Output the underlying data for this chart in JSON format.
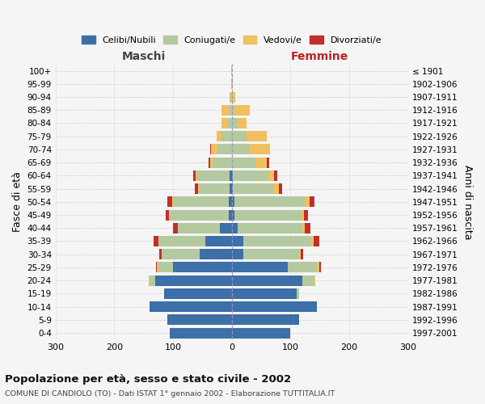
{
  "age_groups": [
    "0-4",
    "5-9",
    "10-14",
    "15-19",
    "20-24",
    "25-29",
    "30-34",
    "35-39",
    "40-44",
    "45-49",
    "50-54",
    "55-59",
    "60-64",
    "65-69",
    "70-74",
    "75-79",
    "80-84",
    "85-89",
    "90-94",
    "95-99",
    "100+"
  ],
  "birth_years": [
    "1997-2001",
    "1992-1996",
    "1987-1991",
    "1982-1986",
    "1977-1981",
    "1972-1976",
    "1967-1971",
    "1962-1966",
    "1957-1961",
    "1952-1956",
    "1947-1951",
    "1942-1946",
    "1937-1941",
    "1932-1936",
    "1927-1931",
    "1922-1926",
    "1917-1921",
    "1912-1916",
    "1907-1911",
    "1902-1906",
    "≤ 1901"
  ],
  "males_celibi": [
    105,
    110,
    140,
    115,
    130,
    100,
    55,
    45,
    20,
    5,
    5,
    4,
    4,
    0,
    0,
    0,
    0,
    0,
    0,
    0,
    0
  ],
  "males_coniugati": [
    0,
    0,
    0,
    0,
    10,
    25,
    65,
    80,
    72,
    100,
    95,
    52,
    55,
    32,
    25,
    18,
    8,
    5,
    2,
    1,
    1
  ],
  "males_vedovi": [
    0,
    0,
    0,
    0,
    1,
    2,
    0,
    0,
    0,
    2,
    2,
    2,
    2,
    5,
    10,
    8,
    10,
    12,
    2,
    0,
    0
  ],
  "males_divorziati": [
    0,
    0,
    0,
    0,
    1,
    2,
    4,
    8,
    8,
    6,
    8,
    5,
    4,
    2,
    2,
    0,
    0,
    0,
    0,
    0,
    0
  ],
  "females_nubili": [
    100,
    115,
    145,
    110,
    120,
    95,
    20,
    20,
    10,
    4,
    4,
    2,
    2,
    0,
    0,
    0,
    0,
    0,
    0,
    0,
    0
  ],
  "females_coniugate": [
    0,
    0,
    0,
    5,
    20,
    50,
    95,
    115,
    110,
    115,
    120,
    70,
    60,
    40,
    30,
    25,
    10,
    5,
    1,
    0,
    0
  ],
  "females_vedove": [
    0,
    0,
    0,
    0,
    2,
    4,
    2,
    4,
    4,
    4,
    8,
    8,
    10,
    20,
    35,
    35,
    15,
    25,
    5,
    2,
    0
  ],
  "females_divorziate": [
    0,
    0,
    0,
    0,
    0,
    2,
    5,
    10,
    10,
    6,
    8,
    5,
    5,
    4,
    0,
    0,
    0,
    0,
    0,
    0,
    0
  ],
  "color_celibi": "#3d6fa8",
  "color_coniugati": "#b5c9a0",
  "color_vedovi": "#f0c060",
  "color_divorziati": "#c0302a",
  "title": "Popolazione per età, sesso e stato civile - 2002",
  "subtitle": "COMUNE DI CANDIOLO (TO) - Dati ISTAT 1° gennaio 2002 - Elaborazione TUTTITALIA.IT",
  "label_maschi": "Maschi",
  "label_femmine": "Femmine",
  "ylabel_left": "Fasce di età",
  "ylabel_right": "Anni di nascita",
  "xlim": 300,
  "legend_labels": [
    "Celibi/Nubili",
    "Coniugati/e",
    "Vedovi/e",
    "Divorziati/e"
  ],
  "bg_color": "#f5f5f5"
}
